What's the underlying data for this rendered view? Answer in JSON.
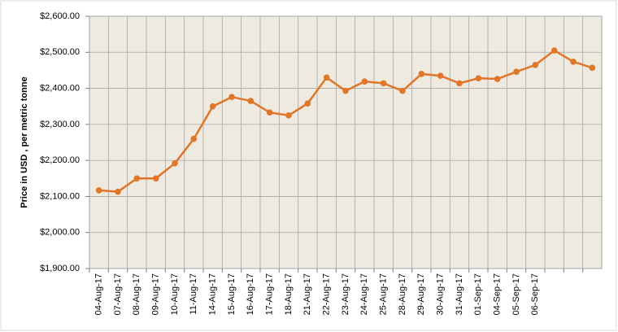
{
  "chart_data": {
    "type": "line",
    "y_axis_label": "Price in USD , per metric tonne",
    "categories": [
      "04-Aug-17",
      "07-Aug-17",
      "08-Aug-17",
      "09-Aug-17",
      "10-Aug-17",
      "11-Aug-17",
      "14-Aug-17",
      "15-Aug-17",
      "16-Aug-17",
      "17-Aug-17",
      "18-Aug-17",
      "21-Aug-17",
      "22-Aug-17",
      "23-Aug-17",
      "24-Aug-17",
      "25-Aug-17",
      "28-Aug-17",
      "29-Aug-17",
      "30-Aug-17",
      "31-Aug-17",
      "01-Sep-17",
      "04-Sep-17",
      "05-Sep-17",
      "06-Sep-17",
      null,
      null,
      null
    ],
    "values": [
      2117,
      2113,
      2150,
      2150,
      2192,
      2260,
      2350,
      2376,
      2365,
      2333,
      2325,
      2358,
      2430,
      2393,
      2419,
      2414,
      2393,
      2440,
      2435,
      2414,
      2428,
      2426,
      2446,
      2465,
      2505,
      2474,
      2457
    ],
    "color": "#e0762a",
    "ylim": [
      1900,
      2600
    ],
    "yticks": [
      {
        "value": 1900,
        "label": "$1,900.00"
      },
      {
        "value": 2000,
        "label": "$2,000.00"
      },
      {
        "value": 2100,
        "label": "$2,100.00"
      },
      {
        "value": 2200,
        "label": "$2,200.00"
      },
      {
        "value": 2300,
        "label": "$2,300.00"
      },
      {
        "value": 2400,
        "label": "$2,400.00"
      },
      {
        "value": 2500,
        "label": "$2,500.00"
      },
      {
        "value": 2600,
        "label": "$2,600.00"
      }
    ],
    "grid": true
  }
}
